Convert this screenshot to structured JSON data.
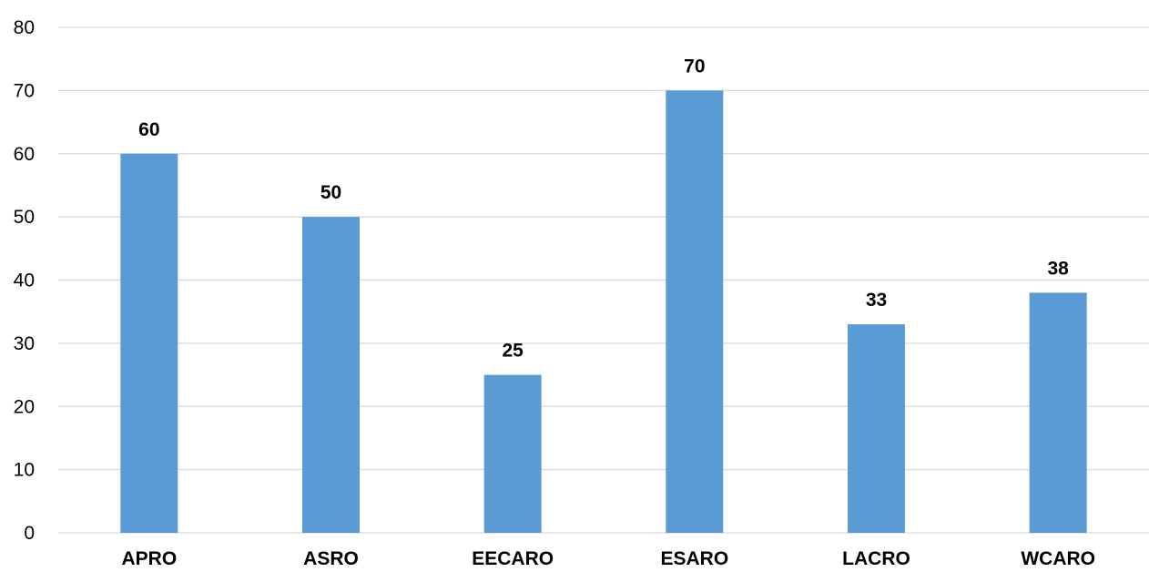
{
  "chart_data": {
    "type": "bar",
    "title": "",
    "xlabel": "",
    "ylabel": "",
    "categories": [
      "APRO",
      "ASRO",
      "EECARO",
      "ESARO",
      "LACRO",
      "WCARO"
    ],
    "values": [
      60,
      50,
      25,
      70,
      33,
      38
    ],
    "ylim": [
      0,
      80
    ],
    "yticks": [
      0,
      10,
      20,
      30,
      40,
      50,
      60,
      70,
      80
    ],
    "data_labels": [
      "60",
      "50",
      "25",
      "70",
      "33",
      "38"
    ],
    "bar_color": "#5b9bd5",
    "grid": true,
    "legend": "none"
  }
}
